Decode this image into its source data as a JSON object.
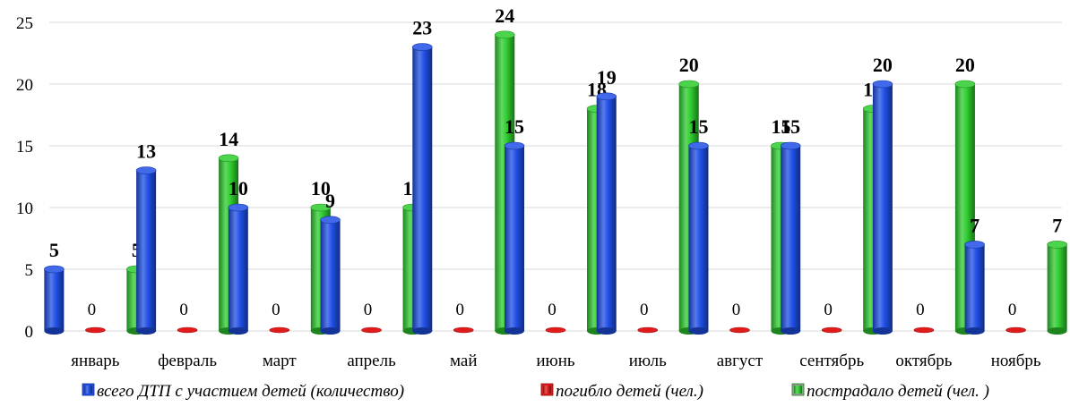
{
  "chart_data": {
    "type": "bar",
    "categories": [
      "январь",
      "февраль",
      "март",
      "апрель",
      "май",
      "июнь",
      "июль",
      "август",
      "сентябрь",
      "октябрь",
      "ноябрь"
    ],
    "series": [
      {
        "name": "всего ДТП с участием детей (количество)",
        "values": [
          5,
          13,
          10,
          9,
          23,
          15,
          19,
          15,
          15,
          20,
          7
        ],
        "color": "#1f4fe6"
      },
      {
        "name": "погибло детей (чел.)",
        "values": [
          0,
          0,
          0,
          0,
          0,
          0,
          0,
          0,
          0,
          0,
          0
        ],
        "color": "#e11b1b"
      },
      {
        "name": "пострадало детей (чел. )",
        "values": [
          5,
          14,
          10,
          10,
          24,
          18,
          20,
          15,
          18,
          20,
          7
        ],
        "color": "#2ecc2e"
      }
    ],
    "ylim": [
      0,
      25
    ],
    "yticks": [
      0,
      5,
      10,
      15,
      20,
      25
    ],
    "grid": true,
    "legend": "bottom",
    "title": "",
    "xlabel": "",
    "ylabel": ""
  }
}
